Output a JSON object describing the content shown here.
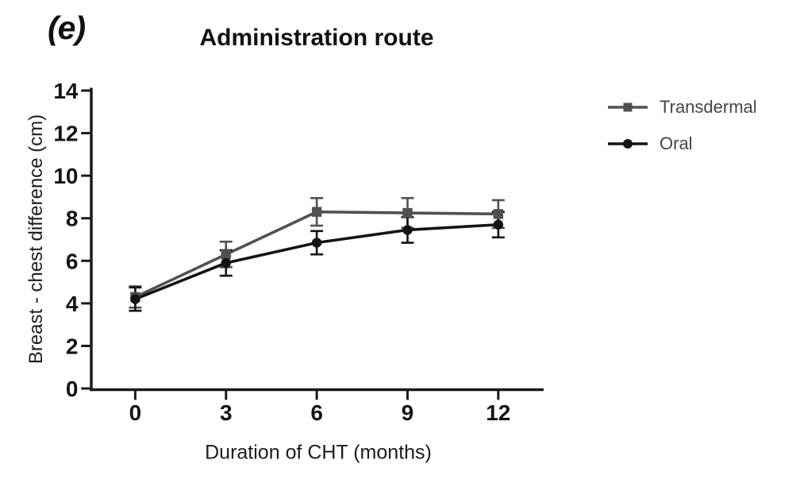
{
  "figure": {
    "panel_label": "(e)",
    "title": "Administration route",
    "background_color": "#ffffff",
    "axis_color": "#1a1a1a"
  },
  "chart_data": {
    "type": "line",
    "panel_label": "(e)",
    "title": "Administration route",
    "xlabel": "Duration of CHT (months)",
    "ylabel": "Breast - chest difference (cm)",
    "x": [
      0,
      3,
      6,
      9,
      12
    ],
    "x_tick_labels": [
      "0",
      "3",
      "6",
      "9",
      "12"
    ],
    "y_ticks": [
      0,
      2,
      4,
      6,
      8,
      10,
      12,
      14
    ],
    "xlim": [
      -1.5,
      13.5
    ],
    "ylim": [
      0,
      14
    ],
    "grid": false,
    "legend_position": "right",
    "error_bars": true,
    "series": [
      {
        "name": "Transdermal",
        "marker": "square",
        "color": "#515151",
        "values": [
          4.3,
          6.3,
          8.3,
          8.25,
          8.2
        ],
        "errors": [
          0.5,
          0.6,
          0.65,
          0.7,
          0.65
        ]
      },
      {
        "name": "Oral",
        "marker": "circle",
        "color": "#141414",
        "values": [
          4.2,
          5.9,
          6.85,
          7.45,
          7.7
        ],
        "errors": [
          0.55,
          0.6,
          0.55,
          0.6,
          0.6
        ]
      }
    ]
  }
}
